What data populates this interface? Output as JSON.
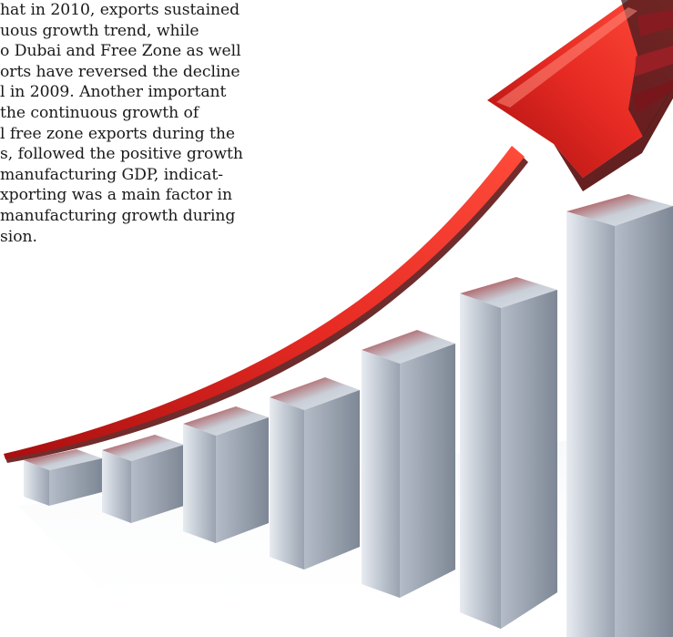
{
  "text": {
    "lines": [
      "hat in 2010, exports sustained",
      "uous growth trend, while",
      "o Dubai and Free Zone as well",
      "orts have reversed the decline",
      "l in 2009. Another important",
      " the continuous growth of",
      "l free zone exports during the",
      "s, followed the positive growth",
      "manufacturing GDP, indicat-",
      "xporting was a main factor in",
      " manufacturing growth during",
      "sion."
    ]
  },
  "illustration": {
    "bar_count": 7,
    "arrow_color": "#e8231e",
    "bar_color": "#b9c0cb",
    "bar_top_accent": "#b71c1c"
  }
}
